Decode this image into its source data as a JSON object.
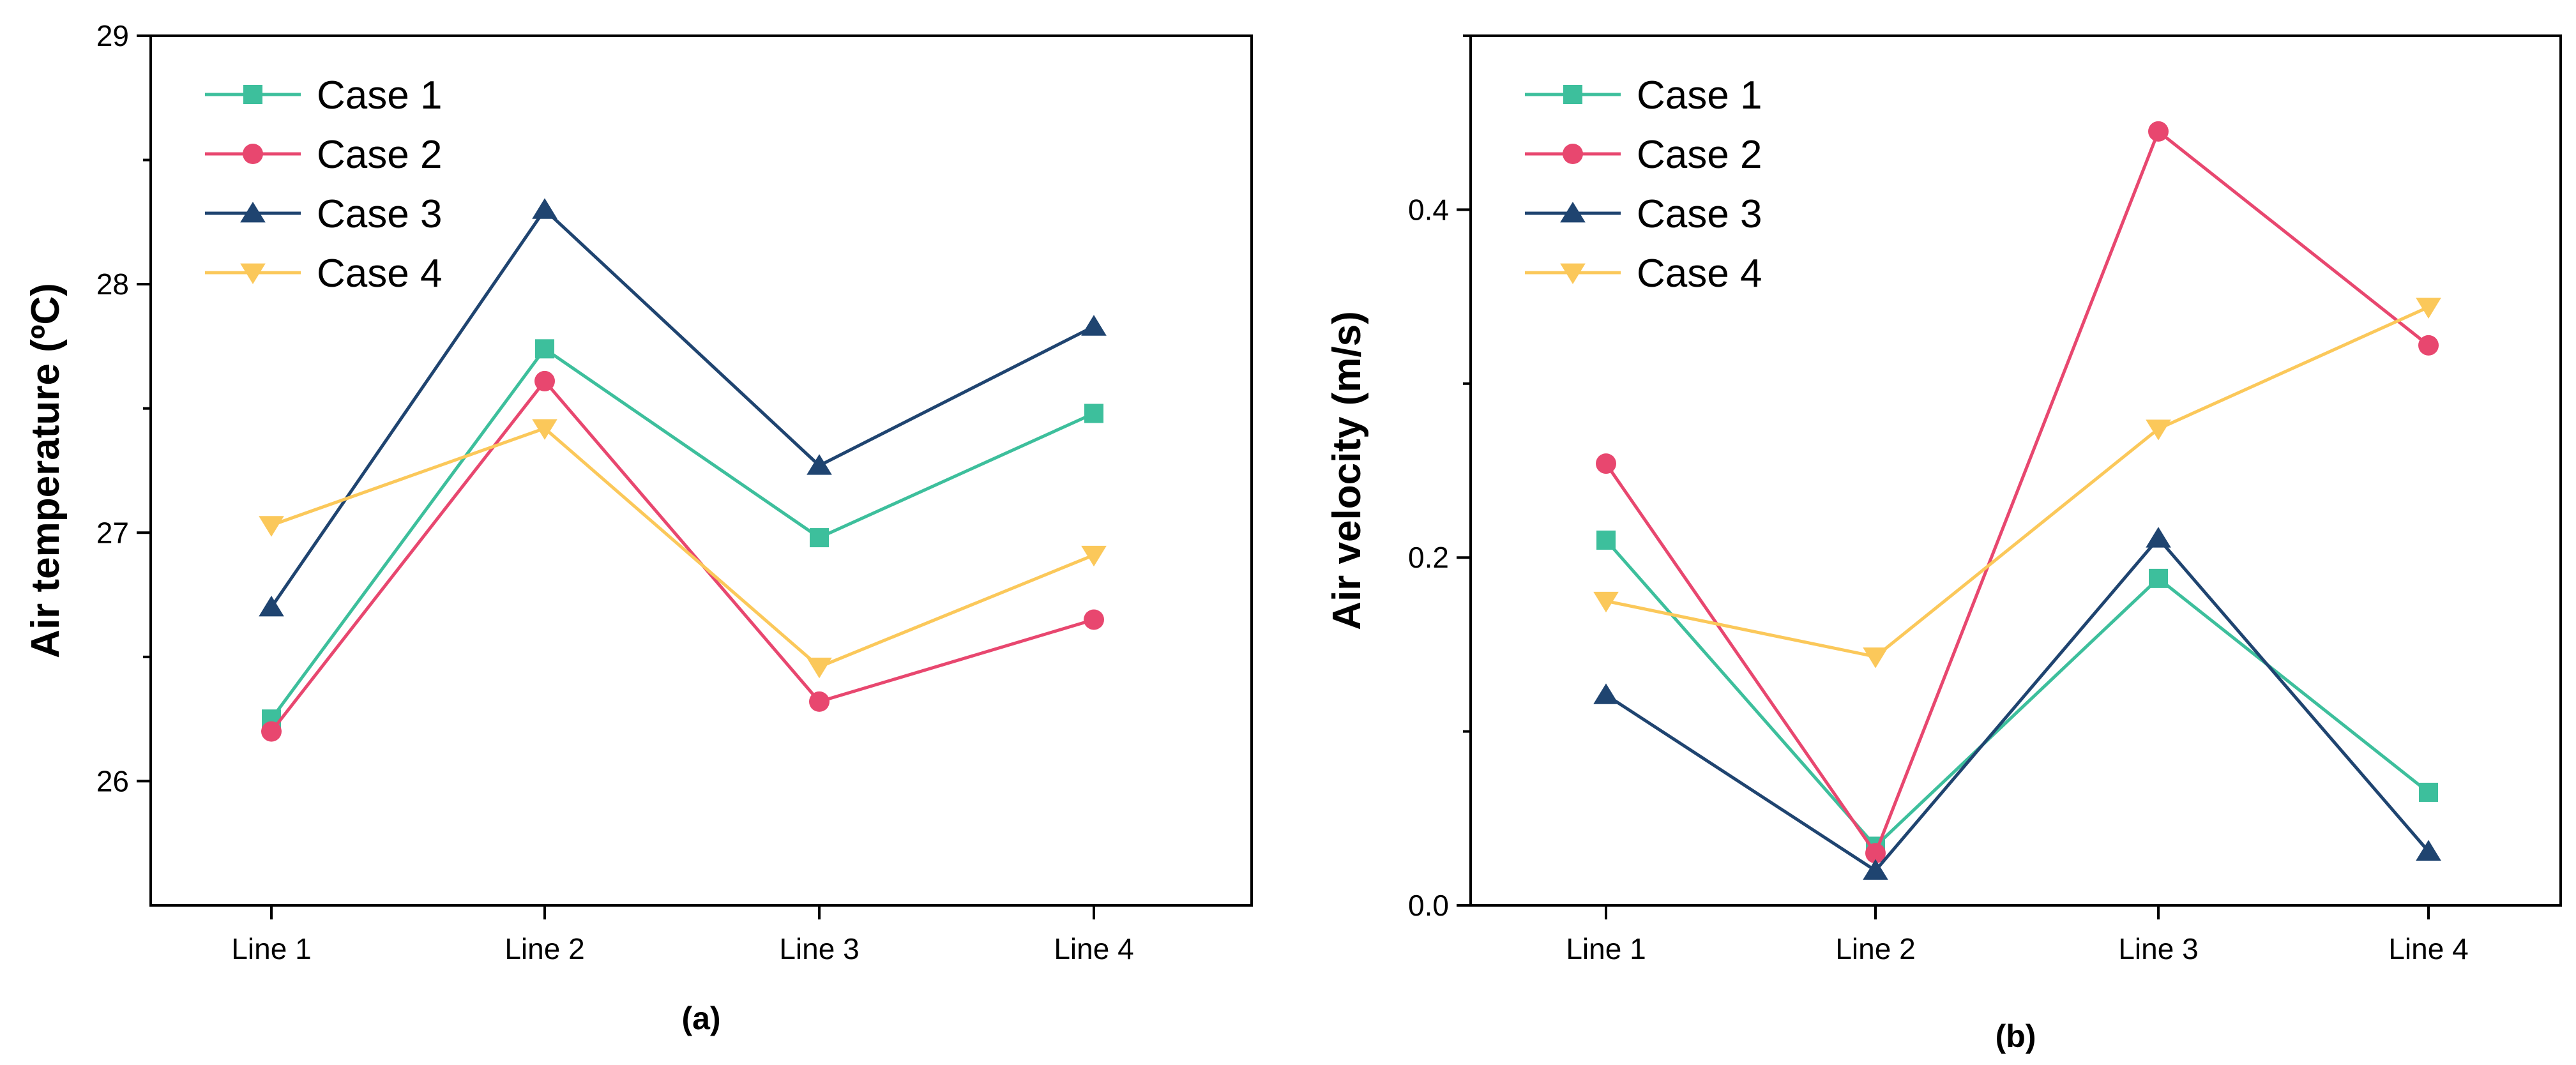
{
  "chart_data": [
    {
      "type": "line",
      "panel_label": "(a)",
      "categories": [
        "Line 1",
        "Line 2",
        "Line 3",
        "Line 4"
      ],
      "xlabel": "",
      "ylabel": "Air temperature (ºC)",
      "ylim": [
        25.5,
        29
      ],
      "yticks": [
        26,
        27,
        28,
        29
      ],
      "yticks_minor": [
        26.5,
        27.5,
        28.5
      ],
      "legend_position": "top-left",
      "series": [
        {
          "name": "Case 1",
          "color": "#3dbf9c",
          "marker": "square",
          "values": [
            26.25,
            27.74,
            26.98,
            27.48
          ]
        },
        {
          "name": "Case 2",
          "color": "#e8476f",
          "marker": "circle",
          "values": [
            26.2,
            27.61,
            26.32,
            26.65
          ]
        },
        {
          "name": "Case 3",
          "color": "#1f4470",
          "marker": "triangle-up",
          "values": [
            26.7,
            28.3,
            27.27,
            27.83
          ]
        },
        {
          "name": "Case 4",
          "color": "#fbc85a",
          "marker": "triangle-down",
          "values": [
            27.03,
            27.42,
            26.46,
            26.91
          ]
        }
      ]
    },
    {
      "type": "line",
      "panel_label": "(b)",
      "categories": [
        "Line 1",
        "Line 2",
        "Line 3",
        "Line 4"
      ],
      "xlabel": "",
      "ylabel": "Air velocity (m/s)",
      "ylim": [
        0,
        0.5
      ],
      "yticks": [
        0.0,
        0.2,
        0.4
      ],
      "yticks_minor": [
        0.1,
        0.3,
        0.5
      ],
      "legend_position": "top-left",
      "series": [
        {
          "name": "Case 1",
          "color": "#3dbf9c",
          "marker": "square",
          "values": [
            0.21,
            0.034,
            0.188,
            0.065
          ]
        },
        {
          "name": "Case 2",
          "color": "#e8476f",
          "marker": "circle",
          "values": [
            0.254,
            0.03,
            0.445,
            0.322
          ]
        },
        {
          "name": "Case 3",
          "color": "#1f4470",
          "marker": "triangle-up",
          "values": [
            0.121,
            0.02,
            0.211,
            0.031
          ]
        },
        {
          "name": "Case 4",
          "color": "#fbc85a",
          "marker": "triangle-down",
          "values": [
            0.175,
            0.143,
            0.274,
            0.344
          ]
        }
      ]
    }
  ]
}
